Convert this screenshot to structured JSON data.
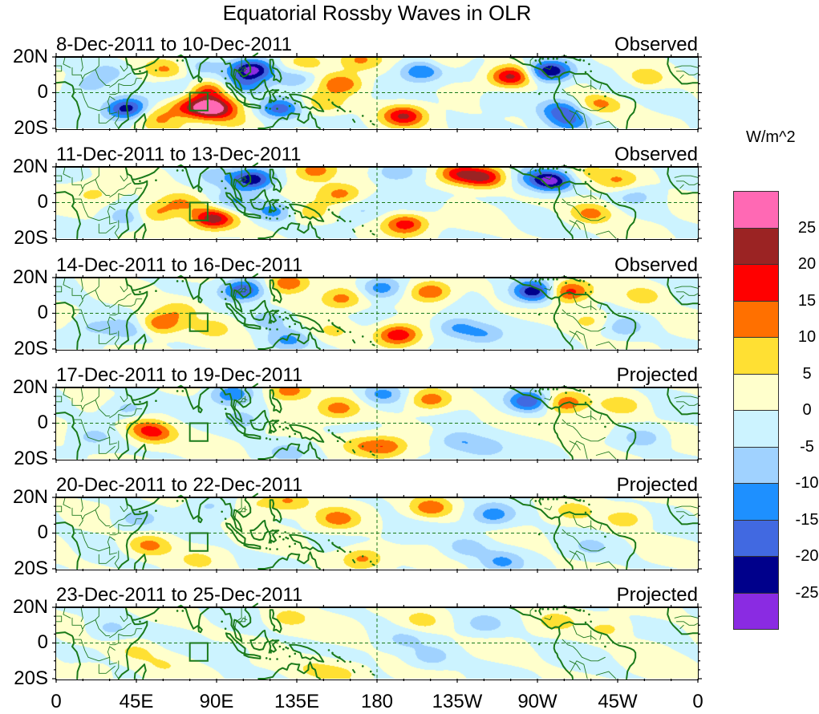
{
  "chart_data": {
    "type": "heatmap",
    "title": "Equatorial Rossby Waves in OLR",
    "colorbar": {
      "unit_label": "W/m^2",
      "levels": [
        25,
        20,
        15,
        10,
        5,
        0,
        -5,
        -10,
        -15,
        -20,
        -25
      ],
      "level_labels": [
        "25",
        "20",
        "15",
        "10",
        "5",
        "0",
        "-5",
        "-10",
        "-15",
        "-20",
        "-25"
      ],
      "colors": [
        "#ff69b4",
        "#9b2323",
        "#ff0000",
        "#ff7000",
        "#ffe033",
        "#ffffcc",
        "#ccf3ff",
        "#a0d2ff",
        "#1e90ff",
        "#4169e1",
        "#00008b",
        "#8a2be2"
      ]
    },
    "x_axis": {
      "range_deg_east": [
        0,
        360
      ],
      "tick_labels": [
        "0",
        "45E",
        "90E",
        "135E",
        "180",
        "135W",
        "90W",
        "45W",
        "0"
      ],
      "tick_values_deg_east": [
        0,
        45,
        90,
        135,
        180,
        225,
        270,
        315,
        360
      ]
    },
    "y_axis": {
      "range_deg": [
        -20,
        20
      ],
      "tick_labels": [
        "20N",
        "0",
        "20S"
      ],
      "tick_values": [
        20,
        0,
        -20
      ]
    },
    "reference_lines": {
      "equator": 0,
      "dateline_deg_east": 180
    },
    "box_region": {
      "lon": [
        75,
        85
      ],
      "lat": [
        -10,
        0
      ]
    },
    "panels": [
      {
        "date_range": "8-Dec-2011 to 10-Dec-2011",
        "status": "Observed",
        "anomalies": [
          [
            40,
            -9,
            -24
          ],
          [
            18,
            4,
            -8
          ],
          [
            30,
            12,
            -6
          ],
          [
            55,
            -12,
            8
          ],
          [
            62,
            13,
            10
          ],
          [
            70,
            3,
            -7
          ],
          [
            88,
            -9,
            28
          ],
          [
            85,
            1,
            16
          ],
          [
            74,
            -8,
            14
          ],
          [
            80,
            14,
            -6
          ],
          [
            110,
            13,
            -26
          ],
          [
            105,
            4,
            -12
          ],
          [
            125,
            -9,
            -18
          ],
          [
            135,
            8,
            -10
          ],
          [
            150,
            -6,
            10
          ],
          [
            160,
            5,
            14
          ],
          [
            140,
            17,
            9
          ],
          [
            170,
            18,
            10
          ],
          [
            195,
            -13,
            20
          ],
          [
            205,
            12,
            -16
          ],
          [
            218,
            18,
            6
          ],
          [
            250,
            -5,
            -6
          ],
          [
            255,
            9,
            22
          ],
          [
            277,
            12,
            -27
          ],
          [
            283,
            -10,
            -14
          ],
          [
            288,
            -17,
            -12
          ],
          [
            305,
            -6,
            12
          ],
          [
            330,
            8,
            10
          ],
          [
            315,
            2,
            -5
          ],
          [
            345,
            -5,
            -4
          ],
          [
            60,
            -18,
            5
          ],
          [
            100,
            -17,
            6
          ]
        ]
      },
      {
        "date_range": "11-Dec-2011 to 13-Dec-2011",
        "status": "Observed",
        "anomalies": [
          [
            22,
            5,
            6
          ],
          [
            40,
            -8,
            -9
          ],
          [
            55,
            -6,
            12
          ],
          [
            70,
            0,
            10
          ],
          [
            88,
            -9,
            22
          ],
          [
            110,
            13,
            -24
          ],
          [
            100,
            0,
            -10
          ],
          [
            122,
            -5,
            -12
          ],
          [
            145,
            18,
            14
          ],
          [
            160,
            5,
            12
          ],
          [
            142,
            -6,
            8
          ],
          [
            170,
            -5,
            -5
          ],
          [
            196,
            -12,
            18
          ],
          [
            190,
            17,
            -10
          ],
          [
            225,
            16,
            18
          ],
          [
            240,
            14,
            20
          ],
          [
            265,
            14,
            -8
          ],
          [
            278,
            12,
            -27
          ],
          [
            300,
            -6,
            12
          ],
          [
            315,
            12,
            10
          ],
          [
            325,
            4,
            -6
          ],
          [
            205,
            0,
            -4
          ],
          [
            295,
            16,
            6
          ],
          [
            90,
            16,
            -6
          ]
        ]
      },
      {
        "date_range": "14-Dec-2011 to 16-Dec-2011",
        "status": "Observed",
        "anomalies": [
          [
            58,
            -6,
            15
          ],
          [
            70,
            2,
            8
          ],
          [
            40,
            -9,
            -8
          ],
          [
            88,
            -8,
            6
          ],
          [
            105,
            13,
            -20
          ],
          [
            120,
            -3,
            -8
          ],
          [
            130,
            17,
            16
          ],
          [
            160,
            8,
            12
          ],
          [
            155,
            -10,
            6
          ],
          [
            192,
            -12,
            20
          ],
          [
            182,
            14,
            -14
          ],
          [
            210,
            12,
            16
          ],
          [
            225,
            -8,
            -12
          ],
          [
            240,
            -12,
            -10
          ],
          [
            268,
            12,
            -25
          ],
          [
            287,
            12,
            18
          ],
          [
            300,
            -4,
            7
          ],
          [
            318,
            -8,
            -8
          ],
          [
            330,
            10,
            8
          ],
          [
            130,
            -15,
            -10
          ],
          [
            20,
            -8,
            -6
          ]
        ]
      },
      {
        "date_range": "17-Dec-2011 to 19-Dec-2011",
        "status": "Projected",
        "anomalies": [
          [
            55,
            -6,
            14
          ],
          [
            48,
            -2,
            8
          ],
          [
            40,
            8,
            -8
          ],
          [
            98,
            16,
            -14
          ],
          [
            105,
            2,
            -8
          ],
          [
            130,
            18,
            14
          ],
          [
            158,
            8,
            12
          ],
          [
            185,
            -13,
            14
          ],
          [
            170,
            -12,
            8
          ],
          [
            183,
            16,
            -12
          ],
          [
            210,
            13,
            14
          ],
          [
            225,
            -10,
            -10
          ],
          [
            240,
            -14,
            -8
          ],
          [
            265,
            12,
            -20
          ],
          [
            285,
            11,
            14
          ],
          [
            318,
            10,
            8
          ],
          [
            300,
            -3,
            6
          ],
          [
            330,
            -8,
            -8
          ],
          [
            20,
            -8,
            -6
          ],
          [
            130,
            -16,
            -6
          ]
        ]
      },
      {
        "date_range": "20-Dec-2011 to 22-Dec-2011",
        "status": "Projected",
        "anomalies": [
          [
            52,
            -7,
            12
          ],
          [
            45,
            8,
            -8
          ],
          [
            85,
            15,
            -6
          ],
          [
            130,
            18,
            10
          ],
          [
            158,
            8,
            12
          ],
          [
            172,
            -14,
            12
          ],
          [
            210,
            14,
            14
          ],
          [
            245,
            10,
            -13
          ],
          [
            230,
            -8,
            -8
          ],
          [
            250,
            -16,
            -10
          ],
          [
            290,
            12,
            6
          ],
          [
            320,
            8,
            8
          ],
          [
            300,
            -8,
            -5
          ],
          [
            80,
            -15,
            5
          ],
          [
            112,
            16,
            6
          ],
          [
            200,
            0,
            -4
          ]
        ]
      },
      {
        "date_range": "23-Dec-2011 to 25-Dec-2011",
        "status": "Projected",
        "anomalies": [
          [
            30,
            8,
            -7
          ],
          [
            45,
            -5,
            6
          ],
          [
            60,
            -12,
            4
          ],
          [
            130,
            14,
            7
          ],
          [
            145,
            -14,
            6
          ],
          [
            160,
            -17,
            7
          ],
          [
            205,
            12,
            7
          ],
          [
            240,
            10,
            -7
          ],
          [
            210,
            -8,
            -8
          ],
          [
            280,
            12,
            6
          ],
          [
            310,
            8,
            6
          ],
          [
            195,
            2,
            -5
          ],
          [
            100,
            -5,
            -3
          ],
          [
            20,
            -16,
            4
          ],
          [
            330,
            -4,
            3
          ]
        ]
      }
    ]
  }
}
